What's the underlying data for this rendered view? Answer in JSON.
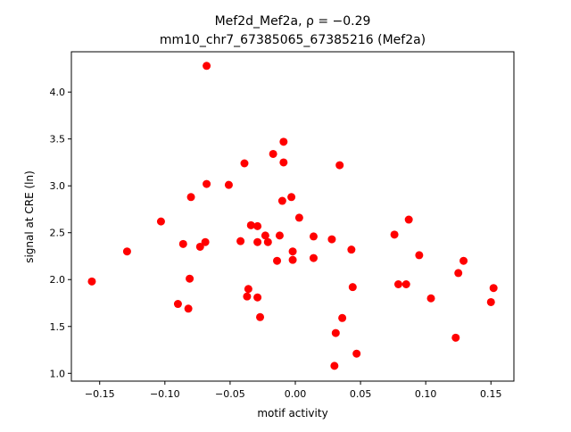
{
  "chart_data": {
    "type": "scatter",
    "title_line1": "Mef2d_Mef2a, ρ = −0.29",
    "title_line2": "mm10_chr7_67385065_67385216 (Mef2a)",
    "xlabel": "motif activity",
    "ylabel": "signal at CRE (ln)",
    "xlim": [
      -0.1717,
      0.1676
    ],
    "ylim": [
      0.917,
      4.43
    ],
    "xticks": [
      -0.15,
      -0.1,
      -0.05,
      0.0,
      0.05,
      0.1,
      0.15
    ],
    "xtick_labels": [
      "−0.15",
      "−0.10",
      "−0.05",
      "0.00",
      "0.05",
      "0.10",
      "0.15"
    ],
    "yticks": [
      1.0,
      1.5,
      2.0,
      2.5,
      3.0,
      3.5,
      4.0
    ],
    "ytick_labels": [
      "1.0",
      "1.5",
      "2.0",
      "2.5",
      "3.0",
      "3.5",
      "4.0"
    ],
    "grid": false,
    "marker_color": "#ff0000",
    "points": [
      [
        -0.156,
        1.98
      ],
      [
        -0.129,
        2.3
      ],
      [
        -0.103,
        2.62
      ],
      [
        -0.086,
        2.38
      ],
      [
        -0.09,
        1.74
      ],
      [
        -0.082,
        1.69
      ],
      [
        -0.081,
        2.01
      ],
      [
        -0.08,
        2.88
      ],
      [
        -0.073,
        2.35
      ],
      [
        -0.069,
        2.4
      ],
      [
        -0.068,
        3.02
      ],
      [
        -0.068,
        4.28
      ],
      [
        -0.051,
        3.01
      ],
      [
        -0.042,
        2.41
      ],
      [
        -0.039,
        3.24
      ],
      [
        -0.037,
        1.82
      ],
      [
        -0.036,
        1.9
      ],
      [
        -0.034,
        2.58
      ],
      [
        -0.029,
        2.57
      ],
      [
        -0.029,
        1.81
      ],
      [
        -0.029,
        2.4
      ],
      [
        -0.027,
        1.6
      ],
      [
        -0.023,
        2.47
      ],
      [
        -0.021,
        2.4
      ],
      [
        -0.017,
        3.34
      ],
      [
        -0.014,
        2.2
      ],
      [
        -0.012,
        2.47
      ],
      [
        -0.01,
        2.84
      ],
      [
        -0.009,
        3.47
      ],
      [
        -0.009,
        3.25
      ],
      [
        -0.003,
        2.88
      ],
      [
        -0.002,
        2.3
      ],
      [
        -0.002,
        2.21
      ],
      [
        0.003,
        2.66
      ],
      [
        0.014,
        2.46
      ],
      [
        0.014,
        2.23
      ],
      [
        0.028,
        2.43
      ],
      [
        0.031,
        1.43
      ],
      [
        0.03,
        1.08
      ],
      [
        0.034,
        3.22
      ],
      [
        0.036,
        1.59
      ],
      [
        0.043,
        2.32
      ],
      [
        0.044,
        1.92
      ],
      [
        0.047,
        1.21
      ],
      [
        0.076,
        2.48
      ],
      [
        0.079,
        1.95
      ],
      [
        0.085,
        1.95
      ],
      [
        0.087,
        2.64
      ],
      [
        0.095,
        2.26
      ],
      [
        0.104,
        1.8
      ],
      [
        0.123,
        1.38
      ],
      [
        0.125,
        2.07
      ],
      [
        0.129,
        2.2
      ],
      [
        0.15,
        1.76
      ],
      [
        0.152,
        1.91
      ]
    ]
  }
}
